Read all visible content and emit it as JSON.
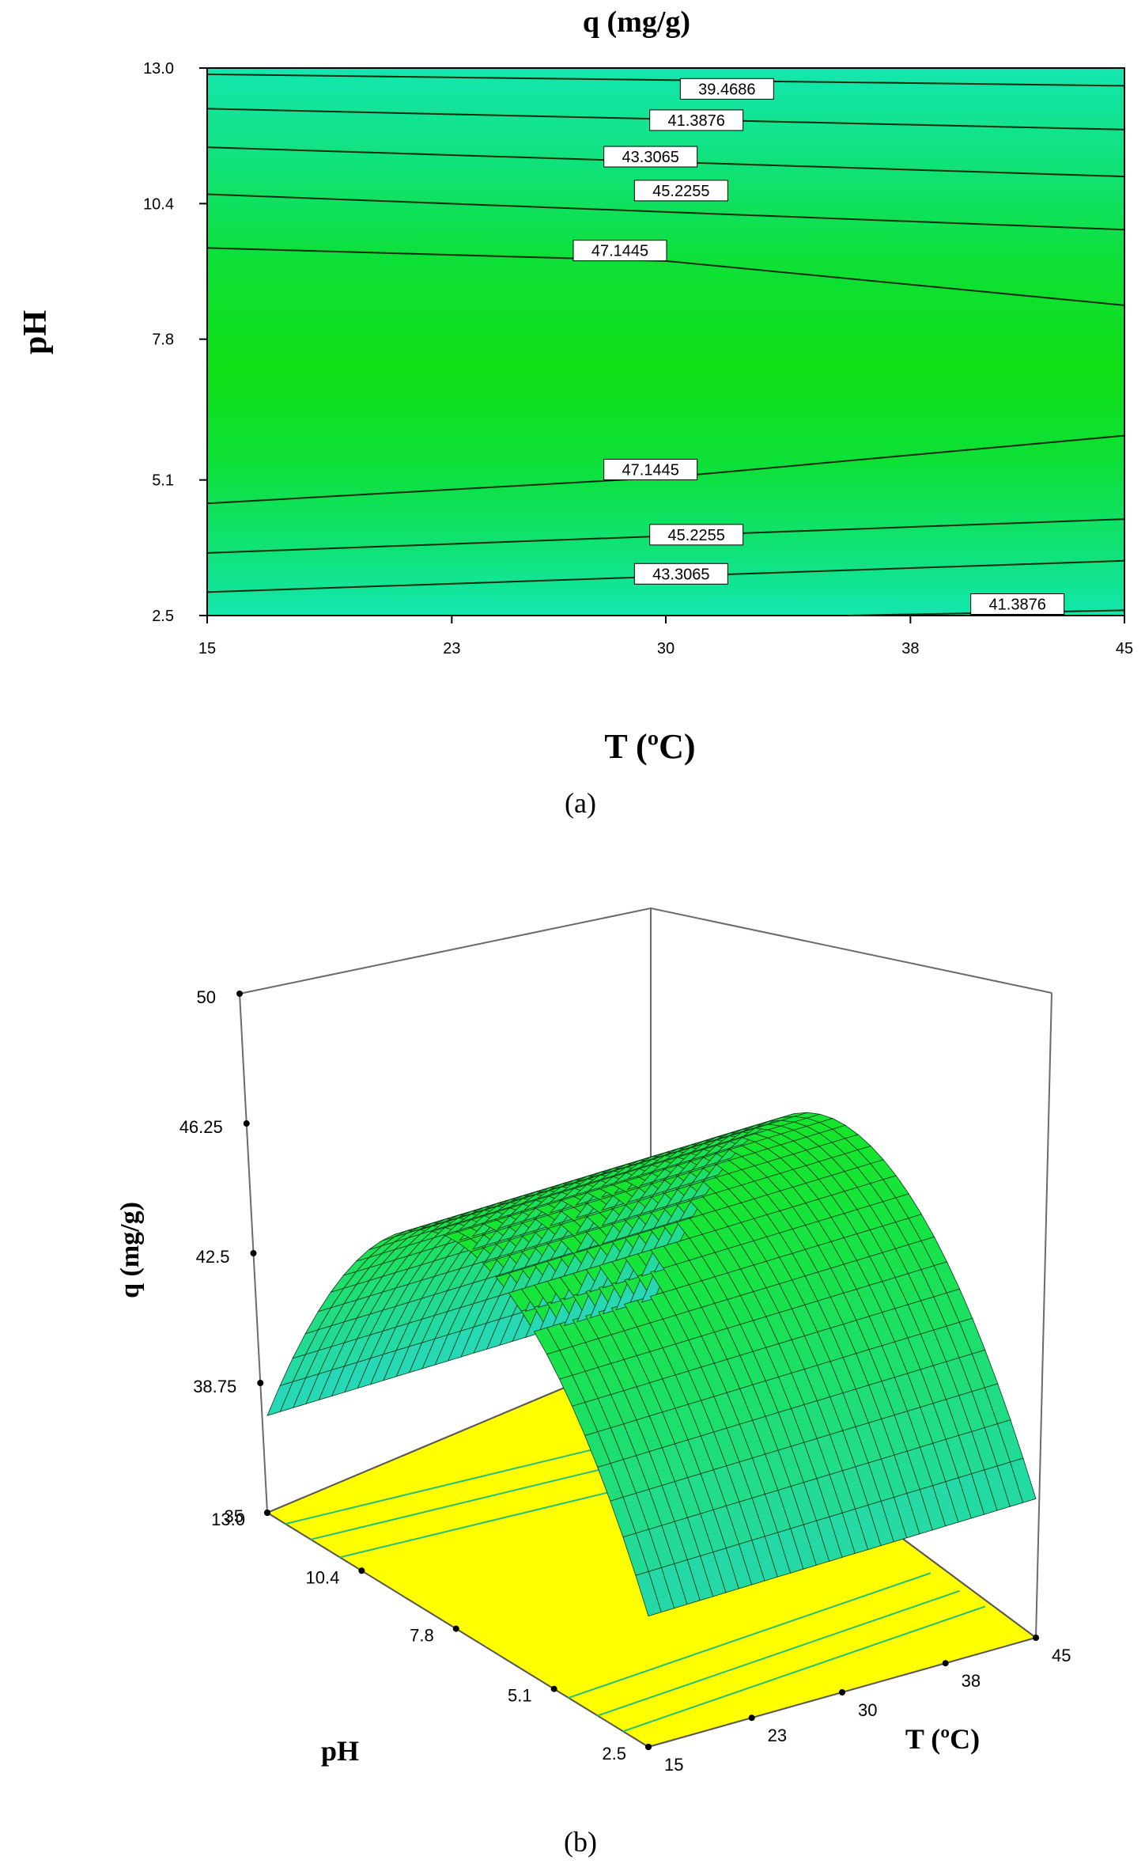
{
  "figure": {
    "panel_a_caption": "(a)",
    "panel_b_caption": "(b)"
  },
  "chart_data": [
    {
      "type": "contour",
      "panel": "(a)",
      "title": "q (mg/g)",
      "xlabel": "T (ºC)",
      "ylabel": "pH",
      "xlim": [
        15,
        45
      ],
      "ylim": [
        2.5,
        13.0
      ],
      "x_ticks": [
        "15",
        "23",
        "30",
        "38",
        "45"
      ],
      "y_ticks": [
        "2.5",
        "5.1",
        "7.8",
        "10.4",
        "13.0"
      ],
      "fill_color": "#10e010",
      "contours": [
        {
          "level": "39.4686",
          "points": [
            [
              15,
              12.88
            ],
            [
              45,
              12.66
            ]
          ],
          "label_at": [
            32,
            12.6
          ]
        },
        {
          "level": "41.3876",
          "points": [
            [
              15,
              12.22
            ],
            [
              45,
              11.82
            ]
          ],
          "label_at": [
            31,
            12.0
          ]
        },
        {
          "level": "43.3065",
          "points": [
            [
              15,
              11.48
            ],
            [
              45,
              10.92
            ]
          ],
          "label_at": [
            29.5,
            11.3
          ]
        },
        {
          "level": "45.2255",
          "points": [
            [
              15,
              10.58
            ],
            [
              45,
              9.9
            ]
          ],
          "label_at": [
            30.5,
            10.65
          ]
        },
        {
          "level": "47.1445",
          "points": [
            [
              15,
              9.55
            ],
            [
              30,
              9.3
            ],
            [
              45,
              8.45
            ]
          ],
          "label_at": [
            28.5,
            9.5
          ]
        },
        {
          "level": "47.1445",
          "points": [
            [
              15,
              4.65
            ],
            [
              30,
              5.15
            ],
            [
              45,
              5.95
            ]
          ],
          "label_at": [
            29.5,
            5.3
          ]
        },
        {
          "level": "45.2255",
          "points": [
            [
              15,
              3.7
            ],
            [
              45,
              4.35
            ]
          ],
          "label_at": [
            31,
            4.05
          ]
        },
        {
          "level": "43.3065",
          "points": [
            [
              15,
              2.95
            ],
            [
              45,
              3.55
            ]
          ],
          "label_at": [
            30.5,
            3.3
          ]
        },
        {
          "level": "41.3876",
          "points": [
            [
              36,
              2.5
            ],
            [
              45,
              2.6
            ]
          ],
          "label_at": [
            41.5,
            2.72
          ]
        }
      ]
    },
    {
      "type": "surface3d",
      "panel": "(b)",
      "xlabel": "T (ºC)",
      "ylabel": "pH",
      "zlabel": "q (mg/g)",
      "xlim": [
        15,
        45
      ],
      "ylim": [
        2.5,
        13.0
      ],
      "zlim": [
        35,
        50
      ],
      "x_ticks": [
        "15",
        "23",
        "30",
        "38",
        "45"
      ],
      "y_ticks": [
        "2.5",
        "5.1",
        "7.8",
        "10.4",
        "13.0"
      ],
      "z_ticks": [
        "35",
        "38.75",
        "42.5",
        "46.25",
        "50"
      ],
      "surface_color": "#22d86a",
      "floor_color": "#ffff00",
      "surface_edges": {
        "q_at_pH_2.5": 40.0,
        "q_at_pH_13.0": 38.75,
        "q_peak": 49.5,
        "peak_pH": 7.8
      }
    }
  ]
}
